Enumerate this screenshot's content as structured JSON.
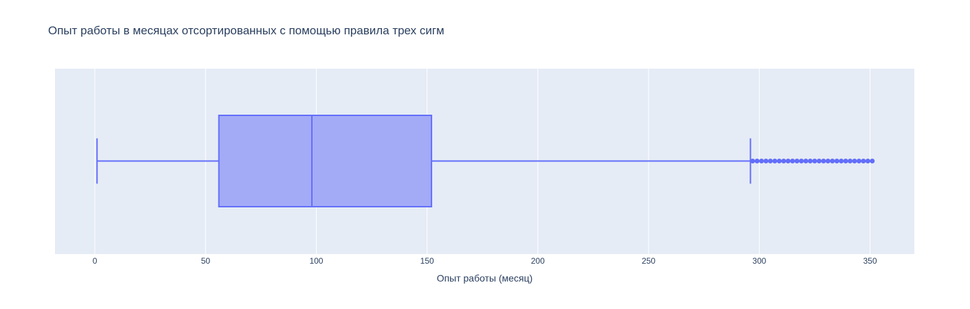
{
  "chart_data": {
    "type": "box",
    "title": "Опыт работы в месяцах отсортированных с помощью правила трех сигм",
    "xlabel": "Опыт работы (месяц)",
    "ylabel": "",
    "orientation": "horizontal",
    "xlim": [
      -18,
      370
    ],
    "xticks": [
      0,
      50,
      100,
      150,
      200,
      250,
      300,
      350
    ],
    "grid": true,
    "legend": "none",
    "series": [
      {
        "lower_fence": 1,
        "q1": 56,
        "median": 98,
        "q3": 152,
        "upper_fence": 296,
        "outliers": [
          297,
          299,
          301,
          303,
          305,
          307,
          309,
          311,
          313,
          315,
          317,
          319,
          321,
          323,
          325,
          327,
          329,
          331,
          333,
          335,
          337,
          339,
          341,
          343,
          345,
          347,
          349,
          351
        ]
      }
    ],
    "colors": {
      "box_line": "#636efa",
      "box_fill": "#a3abf7",
      "plot_bg": "#e5ecf6",
      "grid": "#ffffff",
      "text": "#2a3f5f"
    }
  }
}
